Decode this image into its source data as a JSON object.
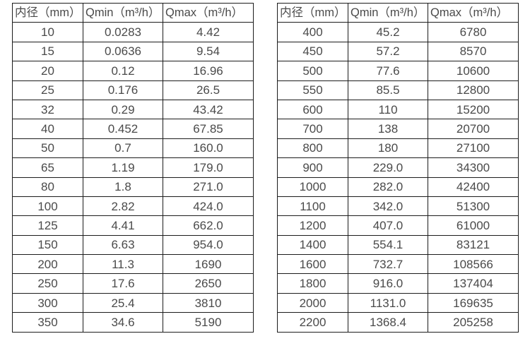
{
  "page": {
    "background": "#ffffff",
    "table_border_color": "#1c1c1c",
    "text_color": "#4a4a4a"
  },
  "tables": [
    {
      "name": "flow-table-small-diameters",
      "headers": [
        "内径（mm）",
        "Qmin（m³/h）",
        "Qmax（m³/h）"
      ],
      "rows": [
        [
          "10",
          "0.0283",
          "4.42"
        ],
        [
          "15",
          "0.0636",
          "9.54"
        ],
        [
          "20",
          "0.12",
          "16.96"
        ],
        [
          "25",
          "0.176",
          "26.5"
        ],
        [
          "32",
          "0.29",
          "43.42"
        ],
        [
          "40",
          "0.452",
          "67.85"
        ],
        [
          "50",
          "0.7",
          "160.0"
        ],
        [
          "65",
          "1.19",
          "179.0"
        ],
        [
          "80",
          "1.8",
          "271.0"
        ],
        [
          "100",
          "2.82",
          "424.0"
        ],
        [
          "125",
          "4.41",
          "662.0"
        ],
        [
          "150",
          "6.63",
          "954.0"
        ],
        [
          "200",
          "11.3",
          "1690"
        ],
        [
          "250",
          "17.6",
          "2650"
        ],
        [
          "300",
          "25.4",
          "3810"
        ],
        [
          "350",
          "34.6",
          "5190"
        ]
      ]
    },
    {
      "name": "flow-table-large-diameters",
      "headers": [
        "内径（mm）",
        "Qmin（m³/h）",
        "Qmax（m³/h）"
      ],
      "rows": [
        [
          "400",
          "45.2",
          "6780"
        ],
        [
          "450",
          "57.2",
          "8570"
        ],
        [
          "500",
          "77.6",
          "10600"
        ],
        [
          "550",
          "85.5",
          "12800"
        ],
        [
          "600",
          "110",
          "15200"
        ],
        [
          "700",
          "138",
          "20700"
        ],
        [
          "800",
          "180",
          "27100"
        ],
        [
          "900",
          "229.0",
          "34300"
        ],
        [
          "1000",
          "282.0",
          "42400"
        ],
        [
          "1100",
          "342.0",
          "51300"
        ],
        [
          "1200",
          "407.0",
          "61000"
        ],
        [
          "1400",
          "554.1",
          "83121"
        ],
        [
          "1600",
          "732.7",
          "108566"
        ],
        [
          "1800",
          "916.0",
          "137404"
        ],
        [
          "2000",
          "1131.0",
          "169635"
        ],
        [
          "2200",
          "1368.4",
          "205258"
        ]
      ]
    }
  ]
}
